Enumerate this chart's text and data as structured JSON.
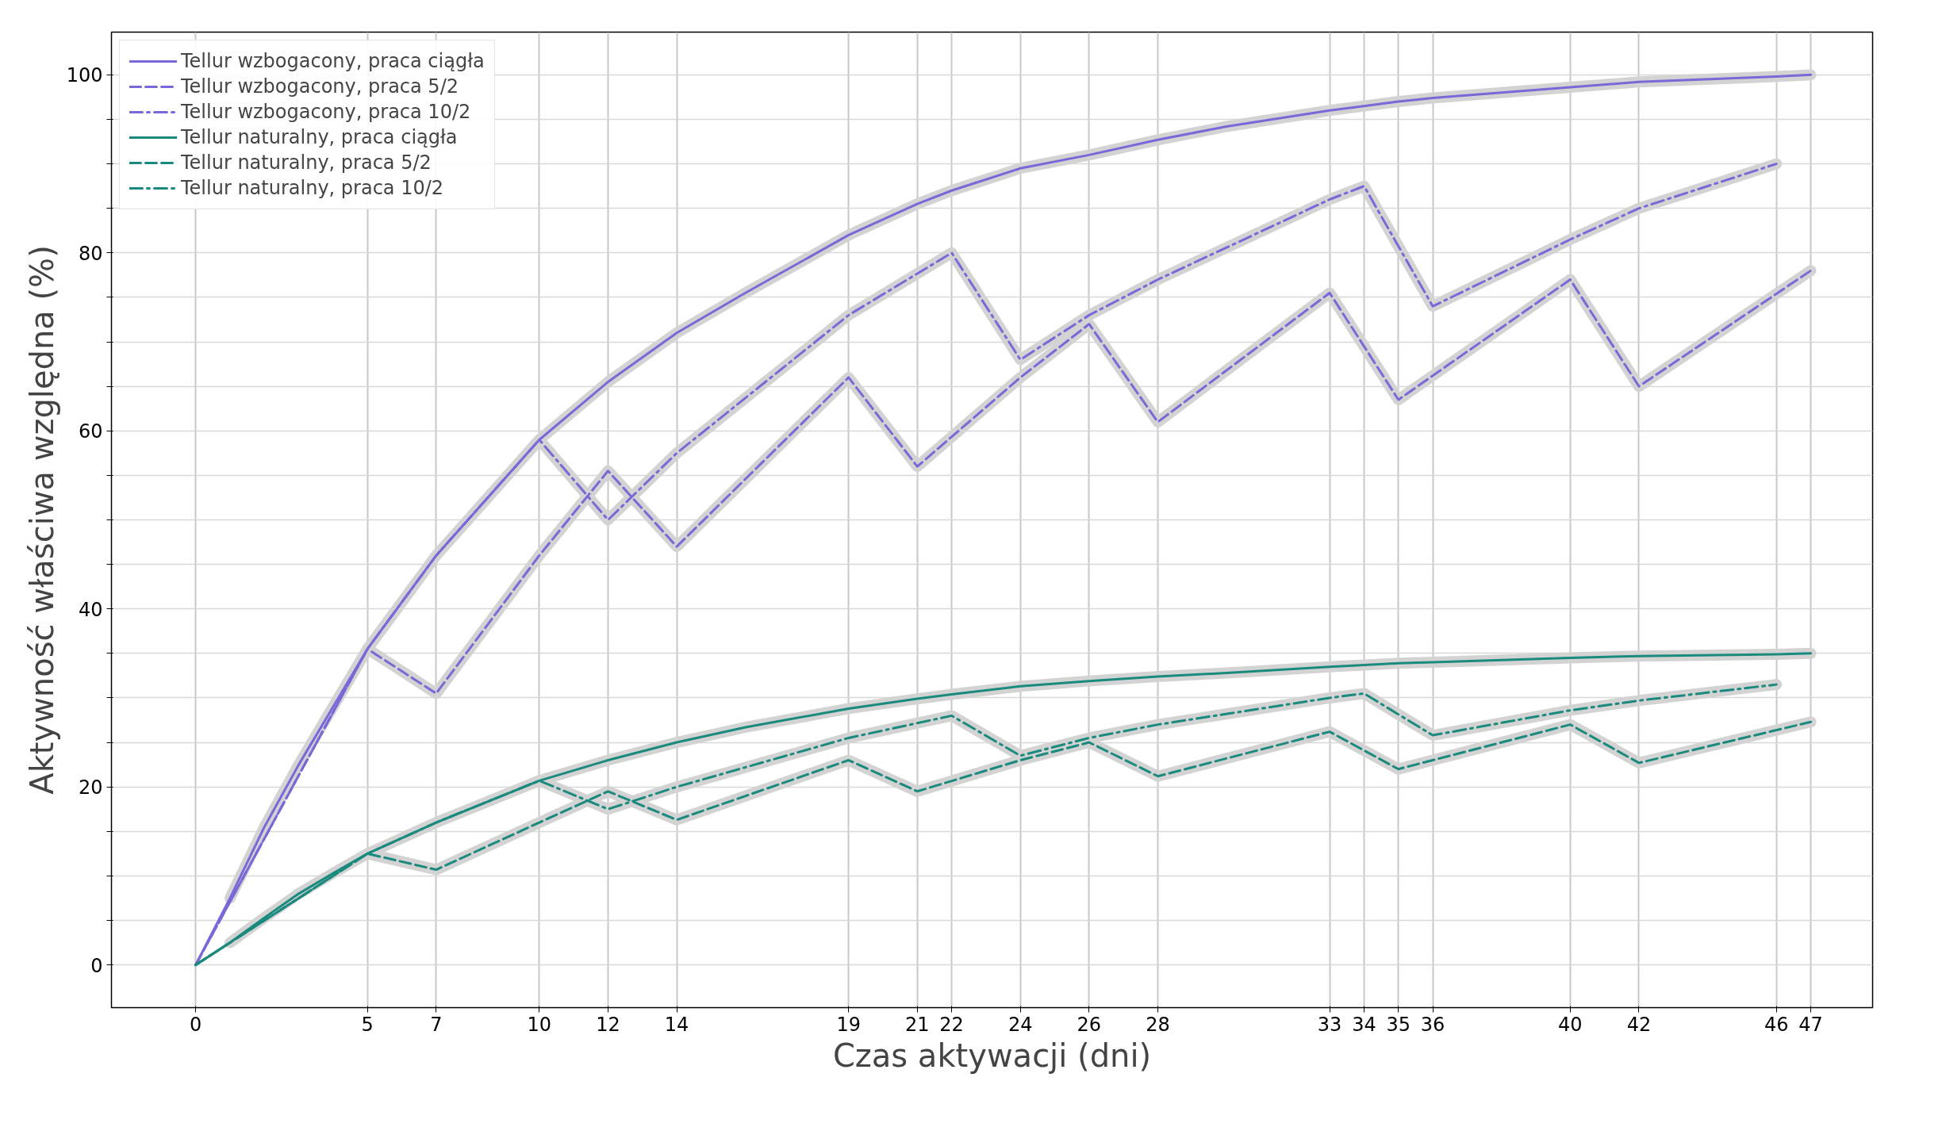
{
  "chart_data": {
    "type": "line",
    "xlabel": "Czas aktywacji (dni)",
    "ylabel": "Aktywność właściwa względna (%)",
    "xlim": [
      -2.45,
      48.8
    ],
    "ylim": [
      -4.8,
      104.8
    ],
    "xticks": [
      0,
      5,
      7,
      10,
      12,
      14,
      19,
      21,
      22,
      24,
      26,
      28,
      33,
      34,
      35,
      36,
      40,
      42,
      46,
      47
    ],
    "yticks": [
      0,
      {
        "value": 5,
        "label": null
      },
      {
        "value": 10,
        "label": null
      },
      {
        "value": 15,
        "label": null
      },
      20,
      {
        "value": 25,
        "label": null
      },
      {
        "value": 30,
        "label": null
      },
      {
        "value": 35,
        "label": null
      },
      40,
      {
        "value": 45,
        "label": null
      },
      {
        "value": 50,
        "label": null
      },
      {
        "value": 55,
        "label": null
      },
      60,
      {
        "value": 65,
        "label": null
      },
      {
        "value": 70,
        "label": null
      },
      {
        "value": 75,
        "label": null
      },
      80,
      {
        "value": 85,
        "label": null
      },
      {
        "value": 90,
        "label": null
      },
      {
        "value": 95,
        "label": null
      },
      100
    ],
    "grid": true,
    "legend": "top left",
    "marker": "none",
    "series": [
      {
        "color": "#d3d3d3",
        "x": [
          1,
          2,
          3,
          4,
          5,
          7,
          10,
          12,
          14,
          16,
          19,
          21,
          22,
          24,
          26,
          28,
          30,
          33,
          34,
          35,
          36,
          40,
          42,
          46,
          47
        ],
        "values": [
          7.5,
          15.5,
          22.5,
          29,
          35.5,
          46,
          59,
          65.5,
          71,
          75.5,
          82,
          85.5,
          87,
          89.5,
          91,
          92.7,
          94.2,
          96,
          96.5,
          97,
          97.4,
          98.6,
          99.2,
          99.8,
          100
        ]
      },
      {
        "color": "#d3d3d3",
        "x": [
          5,
          7,
          10,
          12,
          14,
          19,
          21,
          24,
          26,
          28,
          33,
          35,
          40,
          42,
          47
        ],
        "values": [
          35.5,
          30.5,
          46,
          55.5,
          47,
          66,
          56,
          66,
          72,
          61,
          75.5,
          63.5,
          77,
          65,
          78
        ]
      },
      {
        "color": "#d3d3d3",
        "x": [
          10,
          12,
          14,
          19,
          22,
          24,
          26,
          28,
          33,
          34,
          36,
          40,
          42,
          46
        ],
        "values": [
          59,
          50,
          57.5,
          73,
          80,
          68,
          73,
          77,
          86,
          87.5,
          74,
          81.5,
          85,
          90
        ]
      },
      {
        "color": "#d3d3d3",
        "x": [
          1,
          2,
          3,
          4,
          5,
          7,
          10,
          12,
          14,
          16,
          19,
          21,
          22,
          24,
          26,
          28,
          30,
          33,
          34,
          35,
          36,
          40,
          42,
          46,
          47
        ],
        "values": [
          2.5,
          5.3,
          8,
          10.3,
          12.5,
          16,
          20.7,
          23,
          25,
          26.7,
          28.8,
          29.9,
          30.4,
          31.3,
          31.9,
          32.4,
          32.8,
          33.5,
          33.7,
          33.9,
          34,
          34.5,
          34.7,
          34.9,
          35
        ]
      },
      {
        "color": "#d3d3d3",
        "x": [
          5,
          7,
          10,
          12,
          14,
          19,
          21,
          24,
          26,
          28,
          33,
          35,
          40,
          42,
          47
        ],
        "values": [
          12.5,
          10.7,
          16,
          19.5,
          16.3,
          23,
          19.5,
          23,
          25,
          21.2,
          26.2,
          22,
          27,
          22.7,
          27.3
        ]
      },
      {
        "color": "#d3d3d3",
        "x": [
          10,
          12,
          14,
          19,
          22,
          24,
          26,
          28,
          33,
          34,
          36,
          40,
          42,
          46
        ],
        "values": [
          20.7,
          17.5,
          20,
          25.5,
          28,
          23.5,
          25.5,
          27,
          30,
          30.5,
          25.8,
          28.6,
          29.7,
          31.5
        ]
      },
      {
        "name": "Tellur wzbogacony, praca ciągła",
        "color": "#7b68d8",
        "line_style": "solid",
        "x": [
          0,
          1,
          2,
          3,
          4,
          5,
          7,
          10,
          12,
          14,
          16,
          19,
          21,
          22,
          24,
          26,
          28,
          30,
          33,
          34,
          35,
          36,
          40,
          42,
          46,
          47
        ],
        "values": [
          0,
          7.5,
          15.5,
          22.5,
          29,
          35.5,
          46,
          59,
          65.5,
          71,
          75.5,
          82,
          85.5,
          87,
          89.5,
          91,
          92.7,
          94.2,
          96,
          96.5,
          97,
          97.4,
          98.6,
          99.2,
          99.8,
          100
        ]
      },
      {
        "name": "Tellur wzbogacony, praca 5/2",
        "color": "#7b68d8",
        "line_style": "dashed",
        "x": [
          0,
          5,
          7,
          10,
          12,
          14,
          19,
          21,
          24,
          26,
          28,
          33,
          35,
          40,
          42,
          47
        ],
        "values": [
          0,
          35.5,
          30.5,
          46,
          55.5,
          47,
          66,
          56,
          66,
          72,
          61,
          75.5,
          63.5,
          77,
          65,
          78
        ]
      },
      {
        "name": "Tellur wzbogacony, praca 10/2",
        "color": "#7b68d8",
        "line_style": "dashdot",
        "x": [
          0,
          5,
          7,
          10,
          12,
          14,
          19,
          22,
          24,
          26,
          28,
          33,
          34,
          36,
          40,
          42,
          46
        ],
        "values": [
          0,
          35.5,
          46,
          59,
          50,
          57.5,
          73,
          80,
          68,
          73,
          77,
          86,
          87.5,
          74,
          81.5,
          85,
          90
        ]
      },
      {
        "name": "Tellur naturalny, praca ciągła",
        "color": "#1a8a7e",
        "line_style": "solid",
        "x": [
          0,
          1,
          2,
          3,
          4,
          5,
          7,
          10,
          12,
          14,
          16,
          19,
          21,
          22,
          24,
          26,
          28,
          30,
          33,
          34,
          35,
          36,
          40,
          42,
          46,
          47
        ],
        "values": [
          0,
          2.5,
          5.3,
          8,
          10.3,
          12.5,
          16,
          20.7,
          23,
          25,
          26.7,
          28.8,
          29.9,
          30.4,
          31.3,
          31.9,
          32.4,
          32.8,
          33.5,
          33.7,
          33.9,
          34,
          34.5,
          34.7,
          34.9,
          35
        ]
      },
      {
        "name": "Tellur naturalny, praca 5/2",
        "color": "#1a8a7e",
        "line_style": "dashed",
        "x": [
          0,
          5,
          7,
          10,
          12,
          14,
          19,
          21,
          24,
          26,
          28,
          33,
          35,
          40,
          42,
          47
        ],
        "values": [
          0,
          12.5,
          10.7,
          16,
          19.5,
          16.3,
          23,
          19.5,
          23,
          25,
          21.2,
          26.2,
          22,
          27,
          22.7,
          27.3
        ]
      },
      {
        "name": "Tellur naturalny, praca 10/2",
        "color": "#1a8a7e",
        "line_style": "dashdot",
        "x": [
          0,
          5,
          7,
          10,
          12,
          14,
          19,
          22,
          24,
          26,
          28,
          33,
          34,
          36,
          40,
          42,
          46
        ],
        "values": [
          0,
          12.5,
          16,
          20.7,
          17.5,
          20,
          25.5,
          28,
          23.5,
          25.5,
          27,
          30,
          30.5,
          25.8,
          28.6,
          29.7,
          31.5
        ]
      }
    ]
  }
}
